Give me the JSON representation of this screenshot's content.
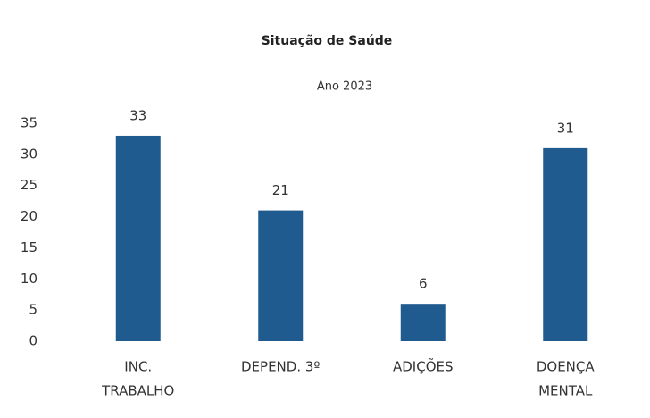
{
  "chart_data": {
    "type": "bar",
    "title": "Situação de Saúde",
    "subtitle": "Ano 2023",
    "categories": [
      [
        "INC.",
        "TRABALHO"
      ],
      [
        "DEPEND. 3º"
      ],
      [
        "ADIÇÕES"
      ],
      [
        "DOENÇA",
        "MENTAL"
      ]
    ],
    "values": [
      33,
      21,
      6,
      31
    ],
    "color": "#1f5b8e",
    "ylim": [
      0,
      35
    ],
    "yticks": [
      0,
      5,
      10,
      15,
      20,
      25,
      30,
      35
    ],
    "grid": false
  }
}
